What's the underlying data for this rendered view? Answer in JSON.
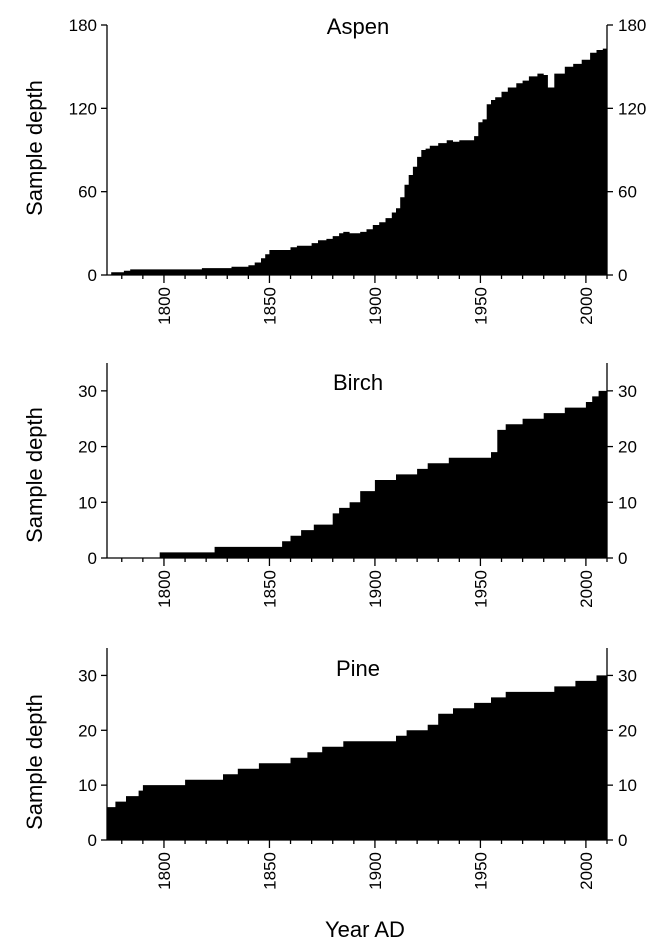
{
  "colors": {
    "fill": "#000000",
    "background": "#ffffff"
  },
  "xlabel": "Year AD",
  "chart_data": [
    {
      "type": "area",
      "step": true,
      "title": "Aspen",
      "ylabel": "Sample depth",
      "xlim": [
        1773,
        2010
      ],
      "ylim": [
        0,
        180
      ],
      "xticks": [
        1800,
        1850,
        1900,
        1950,
        2000
      ],
      "yticks": [
        0,
        60,
        120,
        180
      ],
      "x": [
        1773,
        1775,
        1781,
        1784,
        1800,
        1803,
        1807,
        1818,
        1821,
        1827,
        1832,
        1837,
        1840,
        1843,
        1846,
        1848,
        1850,
        1855,
        1860,
        1863,
        1867,
        1870,
        1873,
        1877,
        1880,
        1883,
        1885,
        1888,
        1893,
        1896,
        1899,
        1902,
        1905,
        1908,
        1910,
        1912,
        1914,
        1916,
        1918,
        1920,
        1922,
        1924,
        1926,
        1930,
        1934,
        1937,
        1940,
        1944,
        1947,
        1949,
        1951,
        1953,
        1955,
        1957,
        1960,
        1963,
        1967,
        1970,
        1973,
        1977,
        1980,
        1982,
        1985,
        1990,
        1994,
        1998,
        2002,
        2005,
        2008,
        2010
      ],
      "values": [
        0,
        2,
        3,
        4,
        4,
        4,
        4,
        5,
        5,
        5,
        6,
        6,
        7,
        9,
        12,
        15,
        18,
        18,
        20,
        21,
        21,
        23,
        25,
        26,
        28,
        30,
        31,
        30,
        31,
        33,
        36,
        38,
        41,
        45,
        48,
        56,
        65,
        72,
        78,
        85,
        90,
        91,
        93,
        95,
        97,
        96,
        97,
        97,
        100,
        110,
        112,
        123,
        126,
        128,
        132,
        135,
        138,
        140,
        143,
        145,
        144,
        135,
        145,
        150,
        152,
        155,
        160,
        162,
        163,
        163
      ]
    },
    {
      "type": "area",
      "step": true,
      "title": "Birch",
      "ylabel": "Sample depth",
      "xlim": [
        1773,
        2010
      ],
      "ylim": [
        0,
        35
      ],
      "xticks": [
        1800,
        1850,
        1900,
        1950,
        2000
      ],
      "yticks": [
        0,
        10,
        20,
        30
      ],
      "x": [
        1773,
        1798,
        1824,
        1853,
        1856,
        1860,
        1865,
        1871,
        1880,
        1883,
        1888,
        1893,
        1900,
        1907,
        1910,
        1915,
        1920,
        1925,
        1930,
        1935,
        1945,
        1955,
        1958,
        1962,
        1970,
        1975,
        1980,
        1985,
        1990,
        1995,
        2000,
        2003,
        2006,
        2010
      ],
      "values": [
        0,
        1,
        2,
        2,
        3,
        4,
        5,
        6,
        8,
        9,
        10,
        12,
        14,
        14,
        15,
        15,
        16,
        17,
        17,
        18,
        18,
        19,
        23,
        24,
        25,
        25,
        26,
        26,
        27,
        27,
        28,
        29,
        30,
        30
      ]
    },
    {
      "type": "area",
      "step": true,
      "title": "Pine",
      "ylabel": "Sample depth",
      "xlim": [
        1773,
        2010
      ],
      "ylim": [
        0,
        35
      ],
      "xticks": [
        1800,
        1850,
        1900,
        1950,
        2000
      ],
      "yticks": [
        0,
        10,
        20,
        30
      ],
      "x": [
        1773,
        1777,
        1779,
        1782,
        1788,
        1790,
        1798,
        1805,
        1810,
        1820,
        1828,
        1835,
        1840,
        1845,
        1852,
        1860,
        1868,
        1875,
        1885,
        1895,
        1905,
        1910,
        1915,
        1920,
        1925,
        1930,
        1933,
        1937,
        1947,
        1955,
        1962,
        1972,
        1985,
        1995,
        2005,
        2010
      ],
      "values": [
        6,
        7,
        7,
        8,
        9,
        10,
        10,
        10,
        11,
        11,
        12,
        13,
        13,
        14,
        14,
        15,
        16,
        17,
        18,
        18,
        18,
        19,
        20,
        20,
        21,
        23,
        23,
        24,
        25,
        26,
        27,
        27,
        28,
        29,
        30,
        30
      ]
    }
  ]
}
